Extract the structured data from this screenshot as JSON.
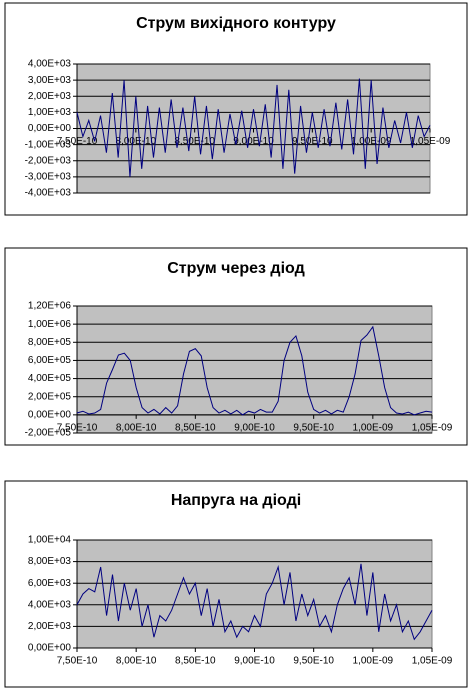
{
  "chart_data": [
    {
      "type": "line",
      "title": "Струм вихідного контуру",
      "x": [
        7.5e-10,
        7.55e-10,
        7.6e-10,
        7.65e-10,
        7.7e-10,
        7.75e-10,
        7.8e-10,
        7.85e-10,
        7.9e-10,
        7.95e-10,
        8e-10,
        8.05e-10,
        8.1e-10,
        8.15e-10,
        8.2e-10,
        8.25e-10,
        8.3e-10,
        8.35e-10,
        8.4e-10,
        8.45e-10,
        8.5e-10,
        8.55e-10,
        8.6e-10,
        8.65e-10,
        8.7e-10,
        8.75e-10,
        8.8e-10,
        8.85e-10,
        8.9e-10,
        8.95e-10,
        9e-10,
        9.05e-10,
        9.1e-10,
        9.15e-10,
        9.2e-10,
        9.25e-10,
        9.3e-10,
        9.35e-10,
        9.4e-10,
        9.45e-10,
        9.5e-10,
        9.55e-10,
        9.6e-10,
        9.65e-10,
        9.7e-10,
        9.75e-10,
        9.8e-10,
        9.85e-10,
        9.9e-10,
        9.95e-10,
        1e-09,
        1.005e-09,
        1.01e-09,
        1.015e-09,
        1.02e-09,
        1.025e-09,
        1.03e-09,
        1.035e-09,
        1.04e-09,
        1.045e-09,
        1.05e-09
      ],
      "values": [
        1000,
        -500,
        500,
        -800,
        800,
        -1500,
        2200,
        -1800,
        3000,
        -3000,
        2000,
        -2500,
        1400,
        -1800,
        1300,
        -1500,
        1800,
        -1200,
        1300,
        -1400,
        2000,
        -1600,
        1400,
        -1900,
        1200,
        -1500,
        900,
        -1000,
        1100,
        -1200,
        1200,
        -1100,
        1500,
        -1800,
        2700,
        -2500,
        2400,
        -2800,
        1400,
        -1500,
        1000,
        -1200,
        1200,
        -1100,
        1600,
        -1300,
        1800,
        -1600,
        3100,
        -2500,
        3000,
        -2200,
        1300,
        -1200,
        500,
        -900,
        1000,
        -1200,
        800,
        -500,
        200
      ],
      "color": "#000080",
      "xlim": [
        7.5e-10,
        1.05e-09
      ],
      "xticks": [
        {
          "value": 7.5e-10,
          "label": "7,50E-10"
        },
        {
          "value": 8e-10,
          "label": "8,00E-10"
        },
        {
          "value": 8.5e-10,
          "label": "8,50E-10"
        },
        {
          "value": 9e-10,
          "label": "9,00E-10"
        },
        {
          "value": 9.5e-10,
          "label": "9,50E-10"
        },
        {
          "value": 1e-09,
          "label": "1,00E-09"
        },
        {
          "value": 1.05e-09,
          "label": "1,05E-09"
        }
      ],
      "ylim": [
        -4000,
        4000
      ],
      "yticks": [
        {
          "value": -4000,
          "label": "-4,00E+03"
        },
        {
          "value": -3000,
          "label": "-3,00E+03"
        },
        {
          "value": -2000,
          "label": "-2,00E+03"
        },
        {
          "value": -1000,
          "label": "-1,00E+03"
        },
        {
          "value": 0,
          "label": "0,00E+00"
        },
        {
          "value": 1000,
          "label": "1,00E+03"
        },
        {
          "value": 2000,
          "label": "2,00E+03"
        },
        {
          "value": 3000,
          "label": "3,00E+03"
        },
        {
          "value": 4000,
          "label": "4,00E+03"
        }
      ],
      "grid": true
    },
    {
      "type": "line",
      "title": "Струм через діод",
      "x": [
        7.5e-10,
        7.55e-10,
        7.6e-10,
        7.65e-10,
        7.7e-10,
        7.75e-10,
        7.8e-10,
        7.85e-10,
        7.9e-10,
        7.95e-10,
        8e-10,
        8.05e-10,
        8.1e-10,
        8.15e-10,
        8.2e-10,
        8.25e-10,
        8.3e-10,
        8.35e-10,
        8.4e-10,
        8.45e-10,
        8.5e-10,
        8.55e-10,
        8.6e-10,
        8.65e-10,
        8.7e-10,
        8.75e-10,
        8.8e-10,
        8.85e-10,
        8.9e-10,
        8.95e-10,
        9e-10,
        9.05e-10,
        9.1e-10,
        9.15e-10,
        9.2e-10,
        9.25e-10,
        9.3e-10,
        9.35e-10,
        9.4e-10,
        9.45e-10,
        9.5e-10,
        9.55e-10,
        9.6e-10,
        9.65e-10,
        9.7e-10,
        9.75e-10,
        9.8e-10,
        9.85e-10,
        9.9e-10,
        9.95e-10,
        1e-09,
        1.005e-09,
        1.01e-09,
        1.015e-09,
        1.02e-09,
        1.025e-09,
        1.03e-09,
        1.035e-09,
        1.04e-09,
        1.045e-09,
        1.05e-09
      ],
      "values": [
        20000,
        40000,
        10000,
        20000,
        60000,
        350000,
        500000,
        660000,
        680000,
        600000,
        300000,
        80000,
        20000,
        60000,
        10000,
        80000,
        20000,
        100000,
        450000,
        700000,
        730000,
        650000,
        300000,
        80000,
        20000,
        50000,
        10000,
        50000,
        0,
        40000,
        20000,
        60000,
        30000,
        30000,
        150000,
        600000,
        800000,
        870000,
        650000,
        250000,
        60000,
        20000,
        50000,
        10000,
        50000,
        30000,
        200000,
        450000,
        820000,
        880000,
        970000,
        650000,
        300000,
        80000,
        20000,
        10000,
        30000,
        0,
        20000,
        40000,
        30000
      ],
      "color": "#000080",
      "xlim": [
        7.5e-10,
        1.05e-09
      ],
      "xticks": [
        {
          "value": 7.5e-10,
          "label": "7,50E-10"
        },
        {
          "value": 8e-10,
          "label": "8,00E-10"
        },
        {
          "value": 8.5e-10,
          "label": "8,50E-10"
        },
        {
          "value": 9e-10,
          "label": "9,00E-10"
        },
        {
          "value": 9.5e-10,
          "label": "9,50E-10"
        },
        {
          "value": 1e-09,
          "label": "1,00E-09"
        },
        {
          "value": 1.05e-09,
          "label": "1,05E-09"
        }
      ],
      "ylim": [
        -200000,
        1200000
      ],
      "yticks": [
        {
          "value": -200000,
          "label": "-2,00E+05"
        },
        {
          "value": 0,
          "label": "0,00E+00"
        },
        {
          "value": 200000,
          "label": "2,00E+05"
        },
        {
          "value": 400000,
          "label": "4,00E+05"
        },
        {
          "value": 600000,
          "label": "6,00E+05"
        },
        {
          "value": 800000,
          "label": "8,00E+05"
        },
        {
          "value": 1000000,
          "label": "1,00E+06"
        },
        {
          "value": 1200000,
          "label": "1,20E+06"
        }
      ],
      "grid": true
    },
    {
      "type": "line",
      "title": "Напруга на діоді",
      "x": [
        7.5e-10,
        7.55e-10,
        7.6e-10,
        7.65e-10,
        7.7e-10,
        7.75e-10,
        7.8e-10,
        7.85e-10,
        7.9e-10,
        7.95e-10,
        8e-10,
        8.05e-10,
        8.1e-10,
        8.15e-10,
        8.2e-10,
        8.25e-10,
        8.3e-10,
        8.35e-10,
        8.4e-10,
        8.45e-10,
        8.5e-10,
        8.55e-10,
        8.6e-10,
        8.65e-10,
        8.7e-10,
        8.75e-10,
        8.8e-10,
        8.85e-10,
        8.9e-10,
        8.95e-10,
        9e-10,
        9.05e-10,
        9.1e-10,
        9.15e-10,
        9.2e-10,
        9.25e-10,
        9.3e-10,
        9.35e-10,
        9.4e-10,
        9.45e-10,
        9.5e-10,
        9.55e-10,
        9.6e-10,
        9.65e-10,
        9.7e-10,
        9.75e-10,
        9.8e-10,
        9.85e-10,
        9.9e-10,
        9.95e-10,
        1e-09,
        1.005e-09,
        1.01e-09,
        1.015e-09,
        1.02e-09,
        1.025e-09,
        1.03e-09,
        1.035e-09,
        1.04e-09,
        1.045e-09,
        1.05e-09
      ],
      "values": [
        4000,
        5000,
        5500,
        5200,
        7500,
        3000,
        6800,
        2500,
        6000,
        3500,
        5500,
        2000,
        4000,
        1000,
        3000,
        2500,
        3500,
        5000,
        6500,
        5000,
        6000,
        3000,
        5500,
        2000,
        4500,
        1500,
        2500,
        1000,
        2000,
        1500,
        3000,
        2000,
        5000,
        6000,
        7500,
        4000,
        7000,
        2500,
        5000,
        3000,
        4500,
        2000,
        3000,
        1500,
        4000,
        5500,
        6500,
        4000,
        7800,
        3000,
        7000,
        1500,
        5000,
        2500,
        4000,
        1500,
        2500,
        800,
        1500,
        2500,
        3500
      ],
      "color": "#000080",
      "xlim": [
        7.5e-10,
        1.05e-09
      ],
      "xticks": [
        {
          "value": 7.5e-10,
          "label": "7,50E-10"
        },
        {
          "value": 8e-10,
          "label": "8,00E-10"
        },
        {
          "value": 8.5e-10,
          "label": "8,50E-10"
        },
        {
          "value": 9e-10,
          "label": "9,00E-10"
        },
        {
          "value": 9.5e-10,
          "label": "9,50E-10"
        },
        {
          "value": 1e-09,
          "label": "1,00E-09"
        },
        {
          "value": 1.05e-09,
          "label": "1,05E-09"
        }
      ],
      "ylim": [
        0,
        10000
      ],
      "yticks": [
        {
          "value": 0,
          "label": "0,00E+00"
        },
        {
          "value": 2000,
          "label": "2,00E+03"
        },
        {
          "value": 4000,
          "label": "4,00E+03"
        },
        {
          "value": 6000,
          "label": "6,00E+03"
        },
        {
          "value": 8000,
          "label": "8,00E+03"
        },
        {
          "value": 10000,
          "label": "1,00E+04"
        }
      ],
      "grid": true
    }
  ]
}
